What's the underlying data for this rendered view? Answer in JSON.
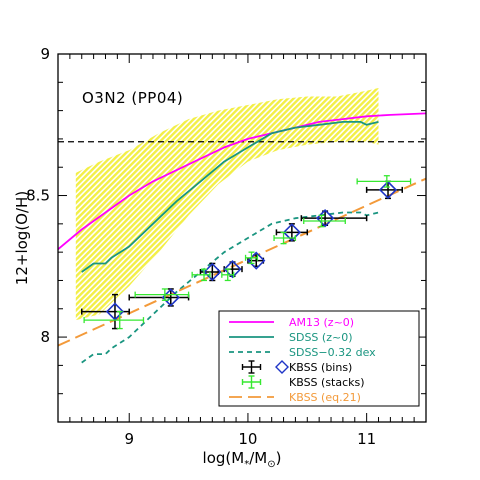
{
  "chart_data": {
    "type": "line",
    "title": "",
    "annotation": "O3N2 (PP04)",
    "xlabel": "log(M",
    "xlabel_sub": "*",
    "xlabel_mid": "/M",
    "xlabel_sub2": "⊙",
    "xlabel_end": ")",
    "ylabel": "12+log(O/H)",
    "xlim": [
      8.4,
      11.5
    ],
    "ylim": [
      7.7,
      9.0
    ],
    "x_ticks": [
      9,
      10,
      11
    ],
    "y_ticks": [
      8,
      8.5,
      9
    ],
    "x_tick_labels": [
      "9",
      "10",
      "11"
    ],
    "y_tick_labels": [
      "8",
      "8.5",
      "9"
    ],
    "hline": {
      "y": 8.69,
      "style": "dashed",
      "color": "#000000"
    },
    "band": {
      "name": "SDSS scatter",
      "color": "#f2ee3c",
      "x": [
        8.55,
        8.75,
        9.0,
        9.25,
        9.5,
        9.75,
        10.0,
        10.25,
        10.5,
        10.75,
        11.0,
        11.1
      ],
      "upper": [
        8.58,
        8.62,
        8.66,
        8.72,
        8.77,
        8.8,
        8.82,
        8.84,
        8.85,
        8.85,
        8.87,
        8.88
      ],
      "lower": [
        8.06,
        8.08,
        8.18,
        8.3,
        8.43,
        8.54,
        8.62,
        8.66,
        8.68,
        8.69,
        8.69,
        8.68
      ]
    },
    "series": [
      {
        "name": "AM13 (z~0)",
        "style": "solid",
        "color": "#ff00ff",
        "x": [
          8.4,
          8.6,
          8.8,
          9.0,
          9.2,
          9.4,
          9.6,
          9.8,
          10.0,
          10.2,
          10.4,
          10.6,
          10.8,
          11.0,
          11.2,
          11.5
        ],
        "y": [
          8.31,
          8.38,
          8.44,
          8.5,
          8.55,
          8.59,
          8.63,
          8.67,
          8.7,
          8.72,
          8.74,
          8.76,
          8.77,
          8.78,
          8.785,
          8.79
        ]
      },
      {
        "name": "SDSS (z~0)",
        "style": "solid",
        "color": "#1a9580",
        "x": [
          8.6,
          8.7,
          8.8,
          8.85,
          9.0,
          9.2,
          9.4,
          9.6,
          9.8,
          10.0,
          10.2,
          10.4,
          10.6,
          10.8,
          10.95,
          11.0,
          11.1
        ],
        "y": [
          8.23,
          8.26,
          8.26,
          8.28,
          8.32,
          8.4,
          8.48,
          8.55,
          8.62,
          8.67,
          8.72,
          8.74,
          8.75,
          8.76,
          8.76,
          8.75,
          8.76
        ]
      },
      {
        "name": "SDSS−0.32 dex",
        "style": "dashed",
        "color": "#1a9580",
        "x": [
          8.6,
          8.7,
          8.8,
          8.85,
          9.0,
          9.2,
          9.4,
          9.6,
          9.8,
          10.0,
          10.2,
          10.4,
          10.6,
          10.8,
          10.95,
          11.0,
          11.1
        ],
        "y": [
          7.91,
          7.94,
          7.94,
          7.96,
          8.0,
          8.08,
          8.16,
          8.23,
          8.3,
          8.35,
          8.4,
          8.42,
          8.43,
          8.44,
          8.44,
          8.43,
          8.44
        ]
      },
      {
        "name": "KBSS (eq.21)",
        "style": "longdash",
        "color": "#f39a3a",
        "x": [
          8.4,
          11.5
        ],
        "y": [
          7.97,
          8.56
        ]
      }
    ],
    "points": [
      {
        "name": "KBSS (bins)",
        "marker": "diamond",
        "marker_color": "#1f35c7",
        "error_color": "#000000",
        "data": [
          {
            "x": 8.88,
            "y": 8.09,
            "xerr_lo": 0.28,
            "xerr_hi": 0.12,
            "yerr": 0.06
          },
          {
            "x": 9.35,
            "y": 8.14,
            "xerr_lo": 0.35,
            "xerr_hi": 0.15,
            "yerr": 0.03
          },
          {
            "x": 9.7,
            "y": 8.23,
            "xerr_lo": 0.1,
            "xerr_hi": 0.05,
            "yerr": 0.03
          },
          {
            "x": 9.87,
            "y": 8.24,
            "xerr_lo": 0.07,
            "xerr_hi": 0.08,
            "yerr": 0.025
          },
          {
            "x": 10.07,
            "y": 8.27,
            "xerr_lo": 0.07,
            "xerr_hi": 0.06,
            "yerr": 0.02
          },
          {
            "x": 10.37,
            "y": 8.37,
            "xerr_lo": 0.13,
            "xerr_hi": 0.13,
            "yerr": 0.03
          },
          {
            "x": 10.65,
            "y": 8.42,
            "xerr_lo": 0.2,
            "xerr_hi": 0.35,
            "yerr": 0.025
          },
          {
            "x": 11.18,
            "y": 8.52,
            "xerr_lo": 0.18,
            "xerr_hi": 0.12,
            "yerr": 0.03
          }
        ]
      },
      {
        "name": "KBSS (stacks)",
        "marker": "none",
        "error_color": "#36e830",
        "data": [
          {
            "x": 8.92,
            "y": 8.06,
            "xerr_lo": 0.3,
            "xerr_hi": 0.2,
            "yerr": 0.03
          },
          {
            "x": 9.3,
            "y": 8.15,
            "xerr_lo": 0.25,
            "xerr_hi": 0.2,
            "yerr": 0.02
          },
          {
            "x": 9.63,
            "y": 8.22,
            "xerr_lo": 0.1,
            "xerr_hi": 0.05,
            "yerr": 0.02
          },
          {
            "x": 9.83,
            "y": 8.22,
            "xerr_lo": 0.05,
            "xerr_hi": 0.05,
            "yerr": 0.02
          },
          {
            "x": 10.03,
            "y": 8.28,
            "xerr_lo": 0.05,
            "xerr_hi": 0.05,
            "yerr": 0.02
          },
          {
            "x": 10.3,
            "y": 8.35,
            "xerr_lo": 0.08,
            "xerr_hi": 0.1,
            "yerr": 0.02
          },
          {
            "x": 10.62,
            "y": 8.41,
            "xerr_lo": 0.15,
            "xerr_hi": 0.2,
            "yerr": 0.02
          },
          {
            "x": 11.17,
            "y": 8.55,
            "xerr_lo": 0.25,
            "xerr_hi": 0.2,
            "yerr": 0.02
          }
        ]
      }
    ],
    "legend": {
      "placement": "bottom-right",
      "entries": [
        {
          "label": "AM13 (z~0)",
          "color": "#ff00ff",
          "text_color": "#ff00ff",
          "kind": "solid"
        },
        {
          "label": "SDSS (z~0)",
          "color": "#1a9580",
          "text_color": "#1a9580",
          "kind": "solid"
        },
        {
          "label": "SDSS−0.32 dex",
          "color": "#1a9580",
          "text_color": "#1a9580",
          "kind": "dashed"
        },
        {
          "label": "KBSS (bins)",
          "color": "#000000",
          "text_color": "#000000",
          "kind": "errorbar-diamond"
        },
        {
          "label": "KBSS (stacks)",
          "color": "#36e830",
          "text_color": "#000000",
          "kind": "errorbar"
        },
        {
          "label": "KBSS (eq.21)",
          "color": "#f39a3a",
          "text_color": "#f39a3a",
          "kind": "longdash"
        }
      ]
    },
    "grid": false
  }
}
